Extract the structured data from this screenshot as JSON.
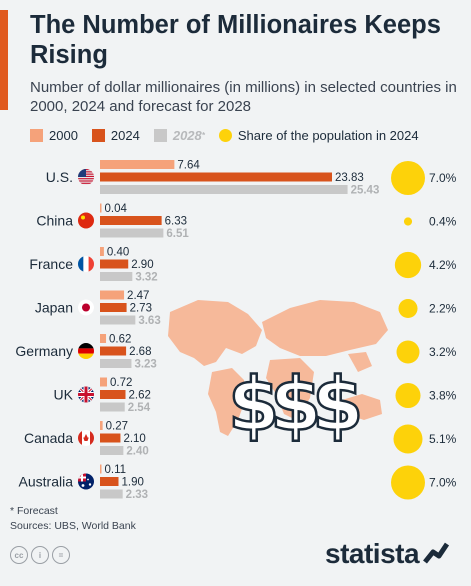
{
  "header": {
    "title": "The Number of Millionaires Keeps Rising",
    "subtitle": "Number of dollar millionaires (in millions) in selected countries in 2000, 2024 and forecast for 2028"
  },
  "legend": {
    "y2000": "2000",
    "y2024": "2024",
    "y2028": "2028",
    "y2028_marker": "*",
    "share": "Share of the population in 2024"
  },
  "colors": {
    "y2000": "#f5a27a",
    "y2024": "#d8531c",
    "y2028": "#c8c8c8",
    "share": "#fdd20a",
    "map": "#f6b99a",
    "title_accent": "#e05a1f"
  },
  "chart_data": {
    "type": "bar",
    "orientation": "horizontal",
    "categories": [
      "U.S.",
      "China",
      "France",
      "Japan",
      "Germany",
      "UK",
      "Canada",
      "Australia"
    ],
    "flag_icons": [
      "us-flag-icon",
      "china-flag-icon",
      "france-flag-icon",
      "japan-flag-icon",
      "germany-flag-icon",
      "uk-flag-icon",
      "canada-flag-icon",
      "australia-flag-icon"
    ],
    "series": [
      {
        "name": "2000",
        "values": [
          7.64,
          0.04,
          0.4,
          2.47,
          0.62,
          0.72,
          0.27,
          0.11
        ],
        "labels": [
          "7.64",
          "0.04",
          "0.40",
          "2.47",
          "0.62",
          "0.72",
          "0.27",
          "0.11"
        ]
      },
      {
        "name": "2024",
        "values": [
          23.83,
          6.33,
          2.9,
          2.73,
          2.68,
          2.62,
          2.1,
          1.9
        ],
        "labels": [
          "23.83",
          "6.33",
          "2.90",
          "2.73",
          "2.68",
          "2.62",
          "2.10",
          "1.90"
        ]
      },
      {
        "name": "2028*",
        "values": [
          25.43,
          6.51,
          3.32,
          3.63,
          3.23,
          2.54,
          2.4,
          2.33
        ],
        "labels": [
          "25.43",
          "6.51",
          "3.32",
          "3.63",
          "3.23",
          "2.54",
          "2.40",
          "2.33"
        ]
      }
    ],
    "share_of_population": {
      "name": "Share of the population in 2024",
      "values": [
        7.0,
        0.4,
        4.2,
        2.2,
        3.2,
        3.8,
        5.1,
        7.0
      ],
      "labels": [
        "7.0%",
        "0.4%",
        "4.2%",
        "2.2%",
        "3.2%",
        "3.8%",
        "5.1%",
        "7.0%"
      ]
    },
    "decoration": "world-map-with-dollar-signs"
  },
  "footer": {
    "footnote": "* Forecast",
    "sources": "Sources: UBS, World Bank",
    "brand": "statista"
  }
}
